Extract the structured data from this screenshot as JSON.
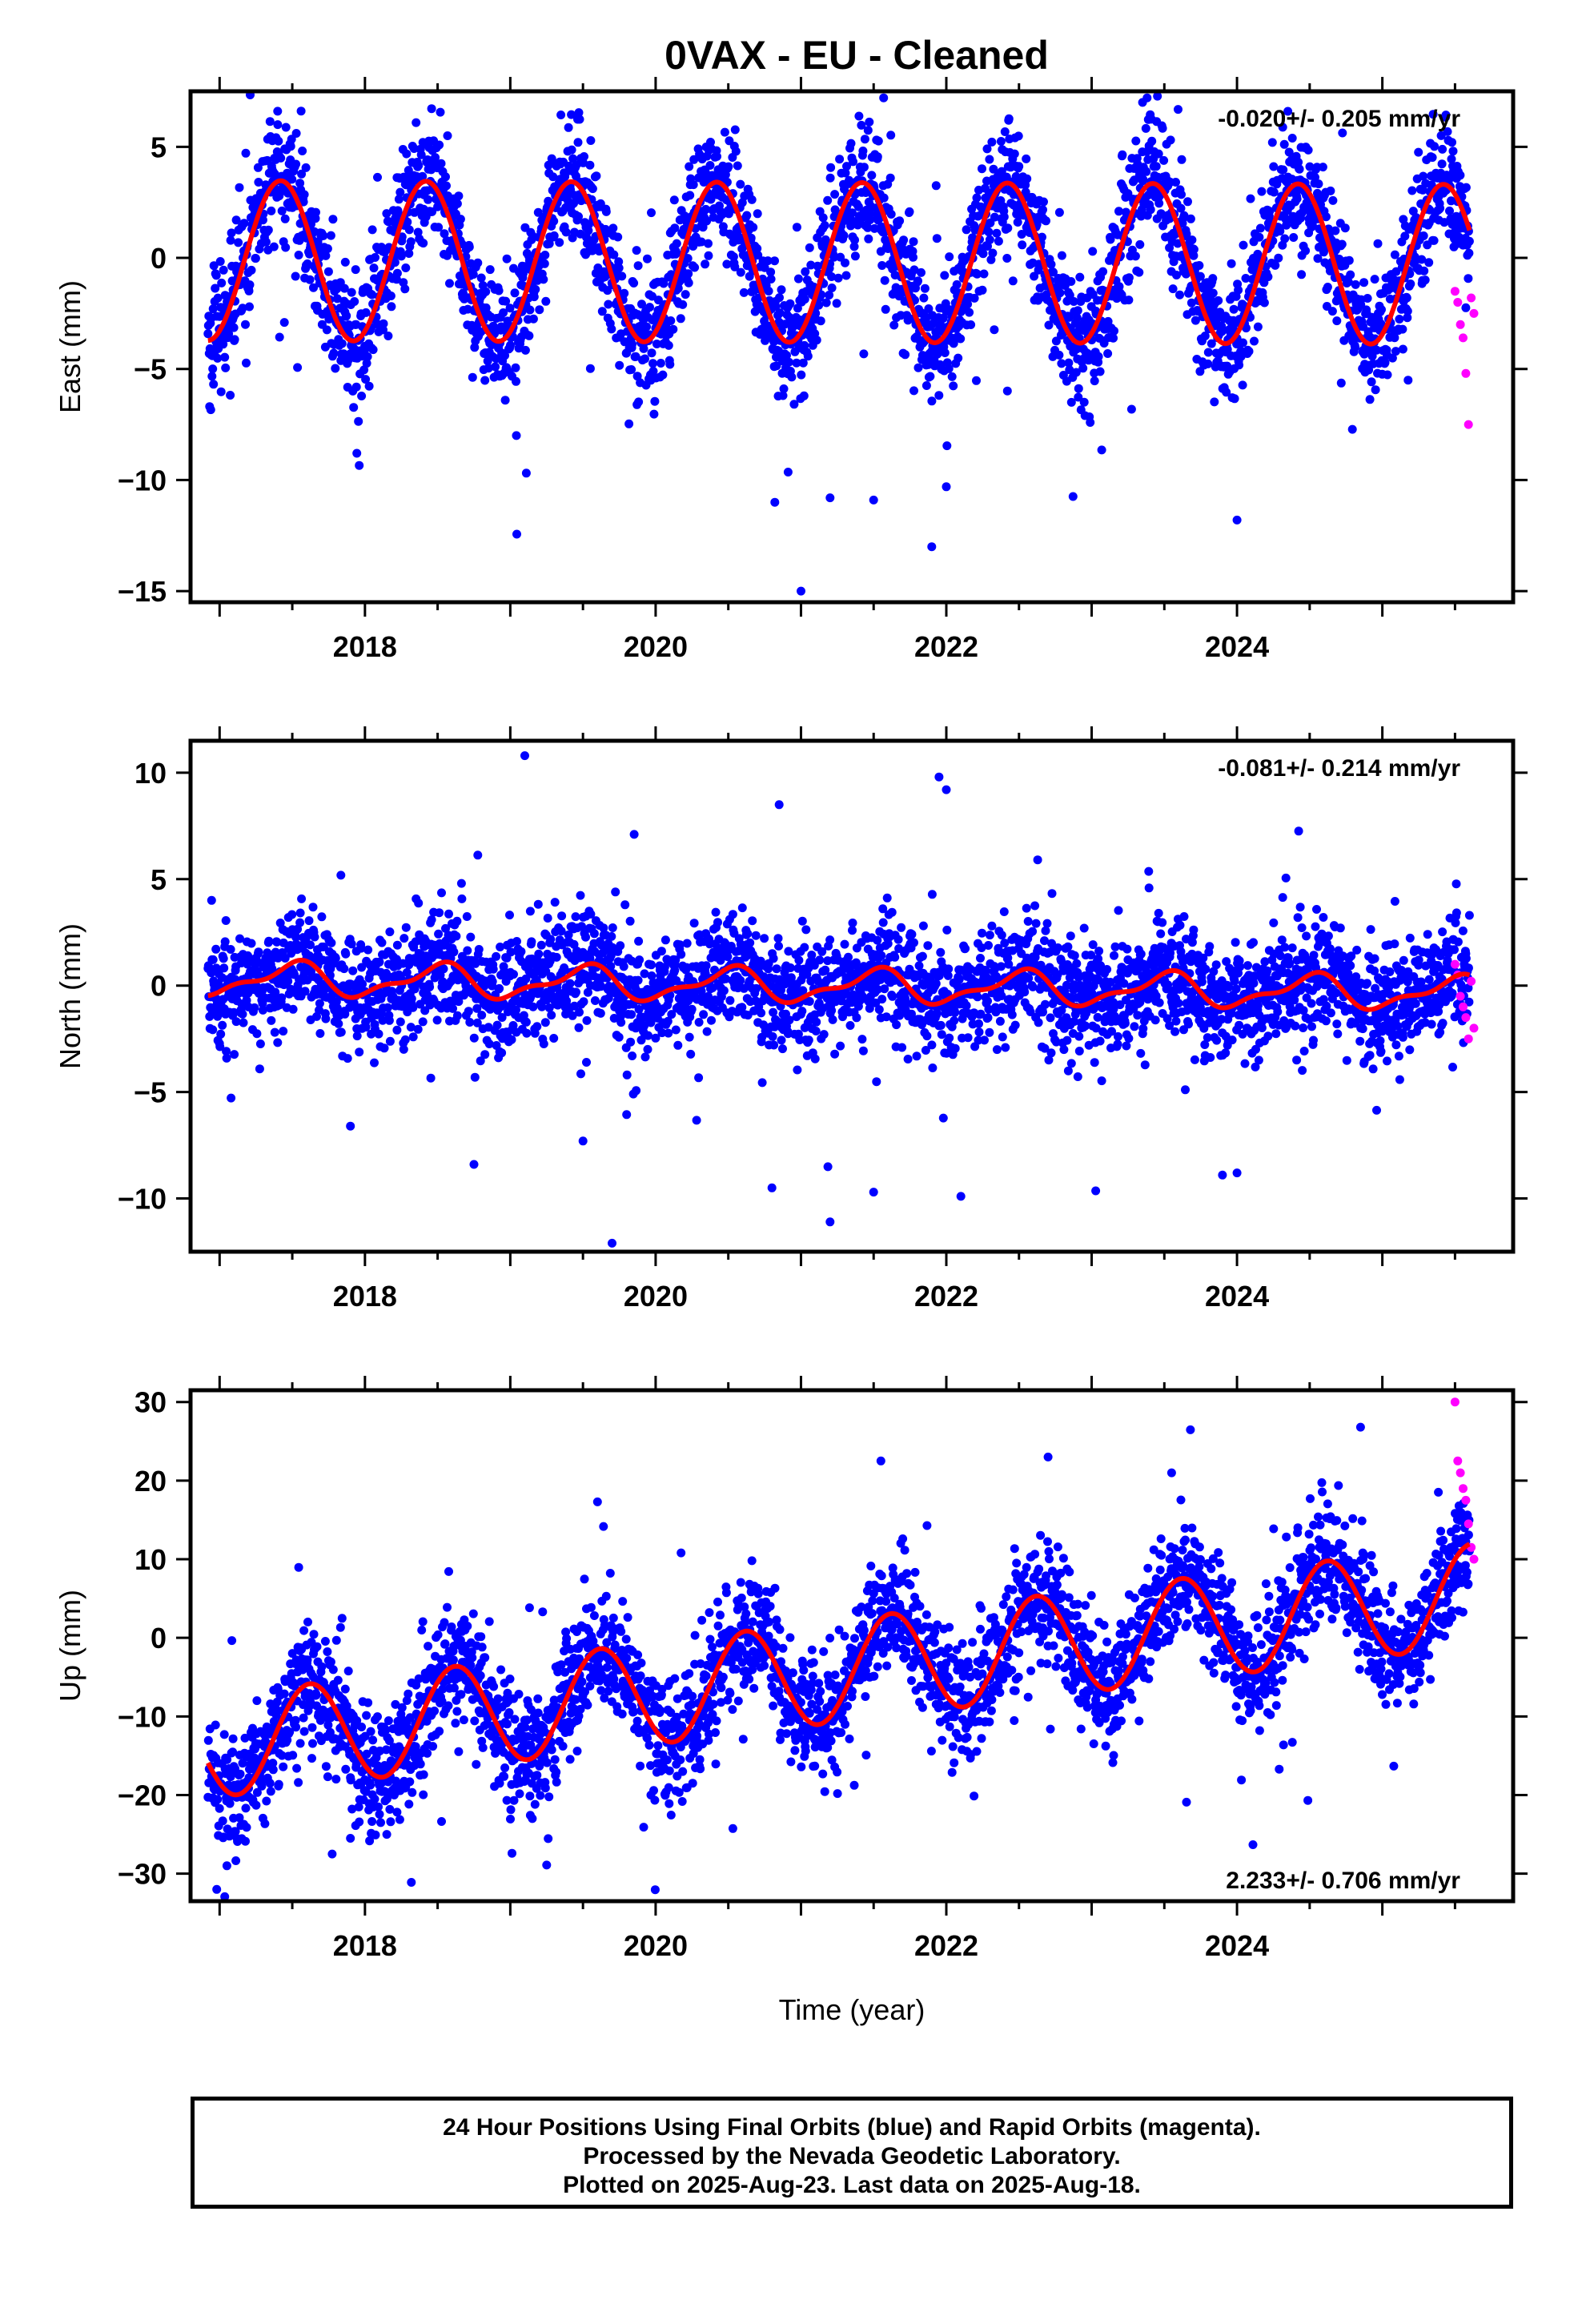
{
  "title": "0VAX  - EU - Cleaned",
  "colors": {
    "final": "#0000ff",
    "rapid": "#ff00ff",
    "model": "#ff0000",
    "frame": "#000000"
  },
  "chart_data": [
    {
      "type": "scatter",
      "xlabel": "",
      "ylabel": "East (mm)",
      "xlim": [
        2016.8,
        2025.9
      ],
      "ylim": [
        -15.5,
        7.5
      ],
      "x_ticks": [
        2018,
        2020,
        2022,
        2024
      ],
      "x_tick_labels": [
        "2018",
        "2020",
        "2022",
        "2024"
      ],
      "y_ticks": [
        5,
        0,
        -5,
        -10,
        -15
      ],
      "y_tick_labels": [
        "5",
        "0",
        "−5",
        "−10",
        "−15"
      ],
      "rate_label": "-0.020+/- 0.205 mm/yr",
      "rate_label_position": "top-right",
      "model": {
        "offset": -0.2,
        "rate": -0.02,
        "amp_annual": 3.6,
        "phase_peak": 0.42,
        "amp_semi": 0.0,
        "phase_semi": 0.0
      },
      "scatter_sigma": 1.4,
      "data_span": [
        2016.92,
        2025.6
      ],
      "rapid_span": [
        2025.5,
        2025.63
      ],
      "rapid_values": [
        -1.5,
        -2.0,
        -3.0,
        -3.6,
        -5.2,
        -7.5,
        -1.8,
        -2.5
      ],
      "outliers": [
        [
          2021.0,
          -15.0
        ],
        [
          2021.9,
          -13.0
        ],
        [
          2020.82,
          -11.0
        ],
        [
          2024.0,
          -11.8
        ],
        [
          2021.2,
          -10.8
        ],
        [
          2021.5,
          -10.9
        ],
        [
          2022.0,
          -10.3
        ],
        [
          2023.35,
          7.0
        ],
        [
          2024.35,
          6.6
        ],
        [
          2017.4,
          6.0
        ]
      ]
    },
    {
      "type": "scatter",
      "xlabel": "",
      "ylabel": "North (mm)",
      "xlim": [
        2016.8,
        2025.9
      ],
      "ylim": [
        -12.5,
        11.5
      ],
      "x_ticks": [
        2018,
        2020,
        2022,
        2024
      ],
      "x_tick_labels": [
        "2018",
        "2020",
        "2022",
        "2024"
      ],
      "y_ticks": [
        10,
        5,
        0,
        -5,
        -10
      ],
      "y_tick_labels": [
        "10",
        "5",
        "0",
        "−5",
        "−10"
      ],
      "rate_label": "-0.081+/- 0.214 mm/yr",
      "rate_label_position": "top-right",
      "model": {
        "offset": 0.0,
        "rate": -0.081,
        "amp_annual": 0.7,
        "phase_peak": 0.5,
        "amp_semi": 0.3,
        "phase_semi": 0.1
      },
      "scatter_sigma": 1.3,
      "data_span": [
        2016.92,
        2025.6
      ],
      "rapid_span": [
        2025.5,
        2025.63
      ],
      "rapid_values": [
        1.0,
        0.5,
        -0.5,
        -1.0,
        -1.5,
        -2.5,
        0.2,
        -2.0
      ],
      "outliers": [
        [
          2019.1,
          10.8
        ],
        [
          2021.95,
          9.8
        ],
        [
          2022.0,
          9.2
        ],
        [
          2020.85,
          8.5
        ],
        [
          2019.7,
          -12.1
        ],
        [
          2021.2,
          -11.1
        ],
        [
          2022.1,
          -9.9
        ],
        [
          2020.8,
          -9.5
        ],
        [
          2021.5,
          -9.7
        ],
        [
          2018.75,
          -8.4
        ],
        [
          2023.9,
          -8.9
        ],
        [
          2024.0,
          -8.8
        ],
        [
          2017.9,
          -6.6
        ],
        [
          2019.5,
          -7.3
        ]
      ]
    },
    {
      "type": "scatter",
      "xlabel": "Time (year)",
      "ylabel": "Up (mm)",
      "xlim": [
        2016.8,
        2025.9
      ],
      "ylim": [
        -33.5,
        31.5
      ],
      "x_ticks": [
        2018,
        2020,
        2022,
        2024
      ],
      "x_tick_labels": [
        "2018",
        "2020",
        "2022",
        "2024"
      ],
      "y_ticks": [
        30,
        20,
        10,
        0,
        -10,
        -20,
        -30
      ],
      "y_tick_labels": [
        "30",
        "20",
        "10",
        "0",
        "−10",
        "−20",
        "−30"
      ],
      "rate_label": "2.233+/- 0.706 mm/yr",
      "rate_label_position": "bottom-right",
      "model": {
        "offset": -4.8,
        "rate": 2.233,
        "amp_annual": 6.5,
        "phase_peak": 0.62,
        "amp_semi": 0.0,
        "phase_semi": 0.0
      },
      "scatter_sigma": 3.8,
      "data_span": [
        2016.92,
        2025.6
      ],
      "rapid_span": [
        2025.5,
        2025.63
      ],
      "rapid_values": [
        30.0,
        22.5,
        21.0,
        19.0,
        17.5,
        14.5,
        11.5,
        10.0
      ],
      "outliers": [
        [
          2016.98,
          -32.0
        ],
        [
          2017.05,
          -29.0
        ],
        [
          2017.9,
          -25.5
        ],
        [
          2018.15,
          -25.0
        ],
        [
          2021.55,
          22.5
        ],
        [
          2022.7,
          23.0
        ],
        [
          2024.85,
          26.8
        ],
        [
          2019.6,
          17.3
        ],
        [
          2023.55,
          21.0
        ]
      ]
    }
  ],
  "footer": {
    "line1": "24 Hour Positions Using Final Orbits (blue) and Rapid Orbits (magenta).",
    "line2": "Processed by the Nevada Geodetic Laboratory.",
    "line3": "Plotted on 2025-Aug-23. Last data on 2025-Aug-18."
  }
}
